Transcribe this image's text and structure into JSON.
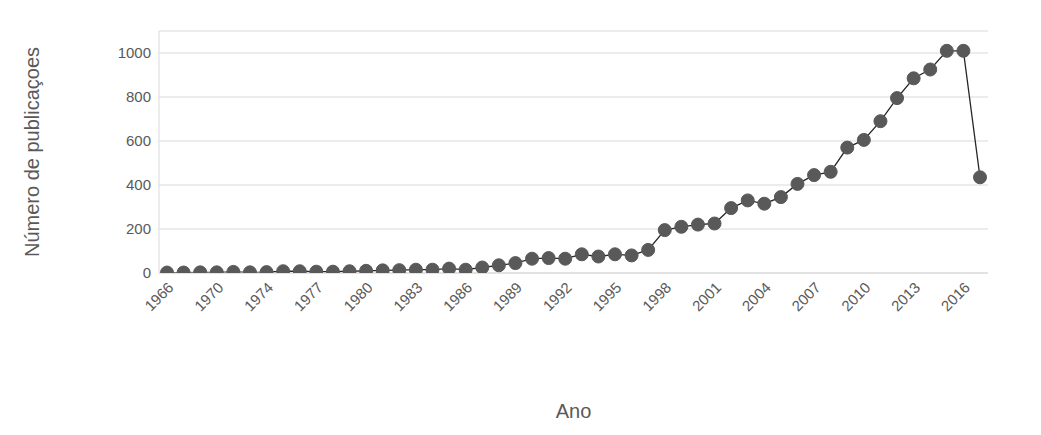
{
  "chart_data": {
    "type": "line",
    "x_label": "Ano",
    "y_label": "Número de publicaçoes",
    "categories": [
      1966,
      null,
      null,
      1970,
      null,
      null,
      1974,
      null,
      null,
      1977,
      null,
      null,
      1980,
      null,
      null,
      1983,
      null,
      null,
      1986,
      null,
      null,
      1989,
      null,
      null,
      1992,
      null,
      null,
      1995,
      null,
      null,
      1998,
      null,
      null,
      2001,
      null,
      null,
      2004,
      null,
      null,
      2007,
      null,
      null,
      2010,
      null,
      null,
      2013,
      null,
      null,
      2016,
      null
    ],
    "values": [
      2,
      2,
      3,
      3,
      5,
      3,
      4,
      8,
      8,
      6,
      6,
      8,
      10,
      12,
      13,
      15,
      15,
      20,
      15,
      25,
      35,
      45,
      65,
      68,
      65,
      85,
      75,
      85,
      80,
      105,
      195,
      210,
      220,
      225,
      295,
      330,
      315,
      345,
      405,
      445,
      460,
      570,
      605,
      690,
      795,
      885,
      925,
      1010,
      1010,
      435
    ],
    "color": "#595959",
    "marker": "circle",
    "ylim": [
      0,
      1100
    ],
    "yticks": [
      0,
      200,
      400,
      600,
      800,
      1000
    ],
    "grid": true
  }
}
